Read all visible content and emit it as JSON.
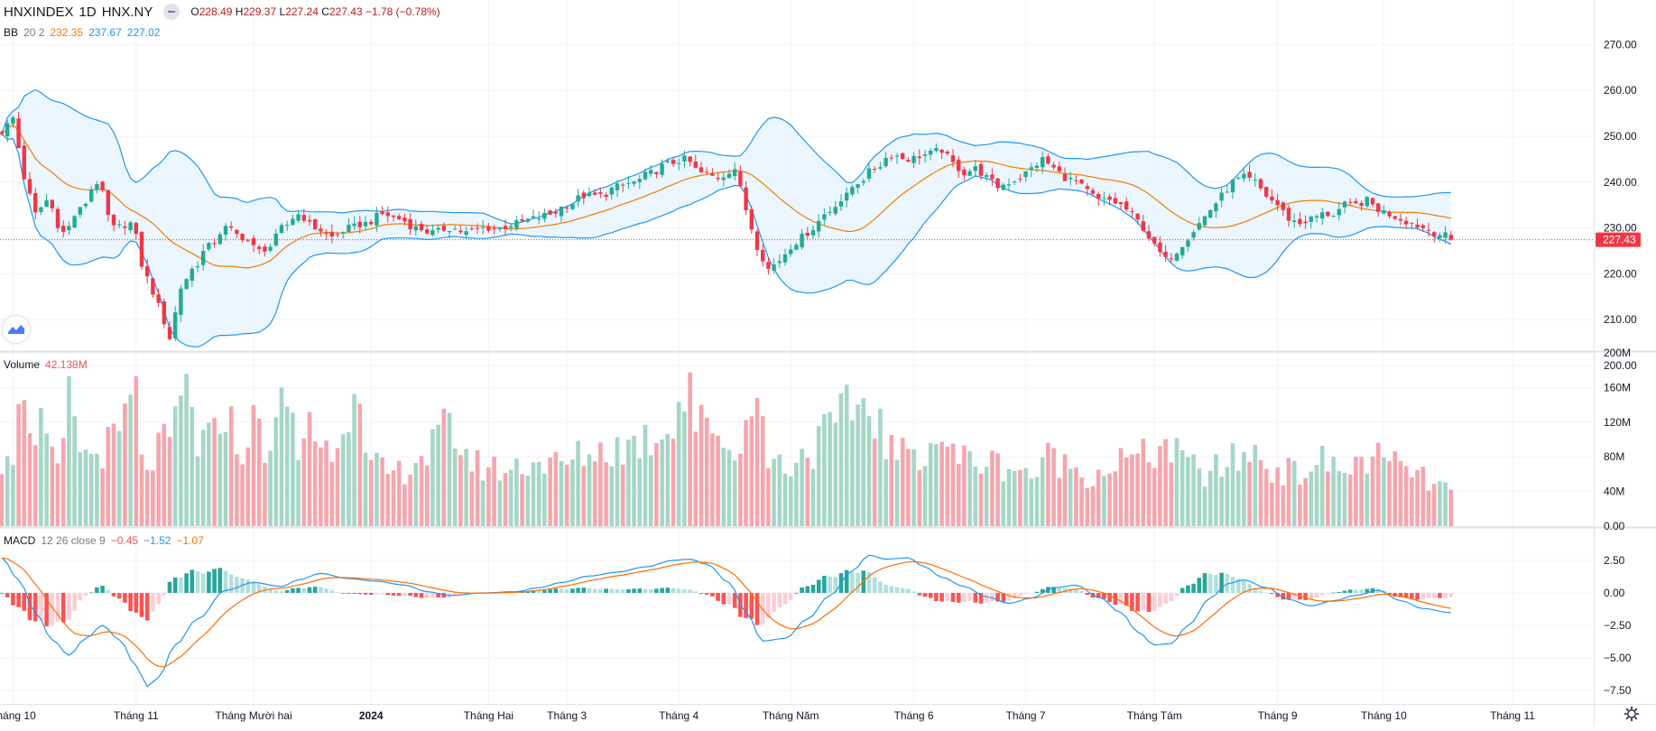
{
  "header": {
    "symbol": "HNXINDEX",
    "interval": "1D",
    "exchange": "HNX.NY",
    "open_label": "O",
    "open": "228.49",
    "high_label": "H",
    "high": "229.37",
    "low_label": "L",
    "low": "227.24",
    "close_label": "C",
    "close": "227.43",
    "change": "−1.78 (−0.78%)"
  },
  "bb_legend": {
    "name": "BB",
    "params": "20 2",
    "basis": "232.35",
    "upper": "237.67",
    "lower": "227.02"
  },
  "volume_legend": {
    "name": "Volume",
    "value": "42.138M"
  },
  "macd_legend": {
    "name": "MACD",
    "params": "12 26 close 9",
    "hist": "−0.45",
    "macd": "−1.52",
    "signal": "−1.07"
  },
  "price_badge": "227.43",
  "colors": {
    "up": "#26a69a",
    "down": "#ef5350",
    "candle_up": "#22ab94",
    "candle_down": "#f23645",
    "vol_up": "#a5d6c6",
    "vol_down": "#f5a6ad",
    "bb_basis": "#f57c00",
    "bb_band": "#2196f3",
    "bb_fill": "#e3f2fd",
    "macd_line": "#2196f3",
    "signal_line": "#ff6d00",
    "last_price": "#f23645",
    "grid": "#f0f3fa",
    "axis_text": "#131722"
  },
  "axis": {
    "price_ticks": [
      "270.00",
      "260.00",
      "250.00",
      "240.00",
      "230.00",
      "220.00",
      "210.00",
      "200.00"
    ],
    "volume_ticks": [
      "200M",
      "160M",
      "120M",
      "80M",
      "40M",
      "0.00"
    ],
    "macd_ticks": [
      "2.50",
      "0.00",
      "−2.50",
      "−5.00",
      "−7.50"
    ],
    "time_labels": [
      "Tháng 10",
      "Tháng 11",
      "Tháng Mười hai",
      "2024",
      "Tháng Hai",
      "Tháng 3",
      "Tháng 4",
      "Tháng Năm",
      "Tháng 6",
      "Tháng 7",
      "Tháng Tám",
      "Tháng 9",
      "Tháng 10",
      "Tháng 11"
    ],
    "bold_label_index": 3
  },
  "chart_data": {
    "type": "candlestick",
    "title": "HNXINDEX 1D HNX.NY",
    "price_range": [
      198,
      272
    ],
    "volume_range": [
      0,
      200
    ],
    "volume_unit": "M",
    "macd_range": [
      -8.5,
      3.0
    ],
    "months": [
      {
        "label": "Tháng 10",
        "start_index": 2
      },
      {
        "label": "Tháng 11",
        "start_index": 24
      },
      {
        "label": "Tháng Mười hai",
        "start_index": 45
      },
      {
        "label": "2024",
        "start_index": 66
      },
      {
        "label": "Tháng Hai",
        "start_index": 87
      },
      {
        "label": "Tháng 3",
        "start_index": 101
      },
      {
        "label": "Tháng 4",
        "start_index": 121
      },
      {
        "label": "Tháng Năm",
        "start_index": 141
      },
      {
        "label": "Tháng 6",
        "start_index": 163
      },
      {
        "label": "Tháng 7",
        "start_index": 183
      },
      {
        "label": "Tháng Tám",
        "start_index": 206
      },
      {
        "label": "Tháng 9",
        "start_index": 228
      },
      {
        "label": "Tháng 10",
        "start_index": 247
      },
      {
        "label": "Tháng 11",
        "start_index": 270
      }
    ],
    "close_anchors": [
      [
        0,
        251
      ],
      [
        2,
        254
      ],
      [
        4,
        241
      ],
      [
        6,
        233
      ],
      [
        8,
        236
      ],
      [
        11,
        229
      ],
      [
        14,
        234
      ],
      [
        17,
        240
      ],
      [
        20,
        230
      ],
      [
        23,
        231
      ],
      [
        26,
        219
      ],
      [
        28,
        213
      ],
      [
        30,
        206
      ],
      [
        32,
        217
      ],
      [
        34,
        221
      ],
      [
        37,
        226
      ],
      [
        40,
        230
      ],
      [
        43,
        228
      ],
      [
        46,
        225
      ],
      [
        48,
        226
      ],
      [
        50,
        230
      ],
      [
        53,
        233
      ],
      [
        56,
        230
      ],
      [
        59,
        228
      ],
      [
        62,
        230
      ],
      [
        65,
        231
      ],
      [
        68,
        233
      ],
      [
        71,
        232
      ],
      [
        74,
        230
      ],
      [
        77,
        229
      ],
      [
        80,
        230
      ],
      [
        83,
        229
      ],
      [
        86,
        230
      ],
      [
        89,
        230
      ],
      [
        92,
        231
      ],
      [
        95,
        232
      ],
      [
        98,
        233
      ],
      [
        101,
        235
      ],
      [
        104,
        237
      ],
      [
        107,
        237
      ],
      [
        110,
        239
      ],
      [
        113,
        240
      ],
      [
        116,
        242
      ],
      [
        119,
        244
      ],
      [
        122,
        245
      ],
      [
        125,
        242
      ],
      [
        128,
        241
      ],
      [
        131,
        243
      ],
      [
        133,
        234
      ],
      [
        135,
        226
      ],
      [
        137,
        221
      ],
      [
        139,
        223
      ],
      [
        141,
        226
      ],
      [
        143,
        228
      ],
      [
        145,
        230
      ],
      [
        147,
        233
      ],
      [
        150,
        236
      ],
      [
        153,
        240
      ],
      [
        156,
        243
      ],
      [
        159,
        246
      ],
      [
        162,
        245
      ],
      [
        165,
        246
      ],
      [
        168,
        247
      ],
      [
        170,
        244
      ],
      [
        172,
        242
      ],
      [
        174,
        243
      ],
      [
        176,
        241
      ],
      [
        178,
        239
      ],
      [
        180,
        240
      ],
      [
        182,
        241
      ],
      [
        184,
        243
      ],
      [
        186,
        245
      ],
      [
        188,
        243
      ],
      [
        190,
        241
      ],
      [
        192,
        240
      ],
      [
        194,
        238
      ],
      [
        196,
        236
      ],
      [
        198,
        236
      ],
      [
        200,
        235
      ],
      [
        202,
        233
      ],
      [
        204,
        230
      ],
      [
        206,
        226
      ],
      [
        208,
        223
      ],
      [
        210,
        225
      ],
      [
        212,
        228
      ],
      [
        214,
        231
      ],
      [
        216,
        234
      ],
      [
        218,
        237
      ],
      [
        220,
        240
      ],
      [
        222,
        241
      ],
      [
        224,
        240
      ],
      [
        226,
        237
      ],
      [
        228,
        235
      ],
      [
        230,
        232
      ],
      [
        232,
        231
      ],
      [
        234,
        232
      ],
      [
        236,
        233
      ],
      [
        238,
        233
      ],
      [
        240,
        235
      ],
      [
        242,
        235
      ],
      [
        244,
        236
      ],
      [
        246,
        234
      ],
      [
        248,
        233
      ],
      [
        250,
        232
      ],
      [
        252,
        231
      ],
      [
        254,
        230
      ],
      [
        256,
        229
      ],
      [
        258,
        228.3
      ],
      [
        259,
        227.43
      ]
    ],
    "volume_anchors": [
      [
        0,
        80
      ],
      [
        1,
        100
      ],
      [
        2,
        90
      ],
      [
        3,
        120
      ],
      [
        4,
        175
      ],
      [
        6,
        85
      ],
      [
        7,
        110
      ],
      [
        10,
        60
      ],
      [
        12,
        140
      ],
      [
        15,
        80
      ],
      [
        20,
        95
      ],
      [
        24,
        150
      ],
      [
        25,
        70
      ],
      [
        30,
        95
      ],
      [
        33,
        160
      ],
      [
        35,
        95
      ],
      [
        38,
        100
      ],
      [
        40,
        145
      ],
      [
        42,
        85
      ],
      [
        45,
        115
      ],
      [
        48,
        90
      ],
      [
        51,
        150
      ],
      [
        53,
        80
      ],
      [
        55,
        135
      ],
      [
        57,
        85
      ],
      [
        60,
        105
      ],
      [
        62,
        150
      ],
      [
        63,
        185
      ],
      [
        65,
        70
      ],
      [
        70,
        60
      ],
      [
        75,
        80
      ],
      [
        80,
        110
      ],
      [
        85,
        70
      ],
      [
        90,
        65
      ],
      [
        95,
        75
      ],
      [
        100,
        70
      ],
      [
        105,
        85
      ],
      [
        110,
        90
      ],
      [
        115,
        100
      ],
      [
        118,
        110
      ],
      [
        120,
        130
      ],
      [
        122,
        150
      ],
      [
        123,
        180
      ],
      [
        124,
        120
      ],
      [
        126,
        110
      ],
      [
        128,
        120
      ],
      [
        130,
        85
      ],
      [
        132,
        80
      ],
      [
        133,
        165
      ],
      [
        135,
        140
      ],
      [
        137,
        80
      ],
      [
        140,
        70
      ],
      [
        145,
        90
      ],
      [
        148,
        110
      ],
      [
        150,
        120
      ],
      [
        152,
        140
      ],
      [
        154,
        140
      ],
      [
        156,
        135
      ],
      [
        158,
        95
      ],
      [
        160,
        80
      ],
      [
        165,
        90
      ],
      [
        168,
        105
      ],
      [
        170,
        80
      ],
      [
        175,
        75
      ],
      [
        180,
        70
      ],
      [
        185,
        60
      ],
      [
        188,
        85
      ],
      [
        190,
        70
      ],
      [
        195,
        60
      ],
      [
        200,
        75
      ],
      [
        205,
        80
      ],
      [
        208,
        95
      ],
      [
        210,
        80
      ],
      [
        215,
        60
      ],
      [
        220,
        75
      ],
      [
        223,
        85
      ],
      [
        228,
        65
      ],
      [
        232,
        60
      ],
      [
        235,
        75
      ],
      [
        240,
        65
      ],
      [
        245,
        80
      ],
      [
        248,
        70
      ],
      [
        252,
        65
      ],
      [
        255,
        50
      ],
      [
        259,
        42
      ]
    ],
    "macd_anchors": [
      [
        0,
        2.7
      ],
      [
        3,
        1.0
      ],
      [
        6,
        -1.5
      ],
      [
        9,
        -3.6
      ],
      [
        12,
        -4.8
      ],
      [
        15,
        -3.5
      ],
      [
        18,
        -2.5
      ],
      [
        21,
        -3.6
      ],
      [
        24,
        -5.6
      ],
      [
        26,
        -7.2
      ],
      [
        28,
        -6.5
      ],
      [
        31,
        -4.0
      ],
      [
        35,
        -2.0
      ],
      [
        40,
        0.2
      ],
      [
        45,
        0.8
      ],
      [
        50,
        0.5
      ],
      [
        53,
        1.0
      ],
      [
        57,
        1.5
      ],
      [
        62,
        1.1
      ],
      [
        67,
        0.9
      ],
      [
        72,
        0.6
      ],
      [
        76,
        0.1
      ],
      [
        80,
        -0.2
      ],
      [
        86,
        0.0
      ],
      [
        92,
        0.1
      ],
      [
        96,
        0.4
      ],
      [
        100,
        0.8
      ],
      [
        105,
        1.3
      ],
      [
        110,
        1.6
      ],
      [
        115,
        2.0
      ],
      [
        120,
        2.5
      ],
      [
        123,
        2.6
      ],
      [
        126,
        2.2
      ],
      [
        130,
        0.8
      ],
      [
        133,
        -1.5
      ],
      [
        136,
        -3.7
      ],
      [
        140,
        -3.5
      ],
      [
        144,
        -2.0
      ],
      [
        148,
        -0.2
      ],
      [
        152,
        1.7
      ],
      [
        155,
        2.9
      ],
      [
        158,
        2.6
      ],
      [
        162,
        2.7
      ],
      [
        165,
        2.0
      ],
      [
        168,
        1.2
      ],
      [
        172,
        0.5
      ],
      [
        176,
        -0.3
      ],
      [
        180,
        -0.8
      ],
      [
        184,
        -0.4
      ],
      [
        188,
        0.4
      ],
      [
        192,
        0.6
      ],
      [
        196,
        -0.3
      ],
      [
        200,
        -1.5
      ],
      [
        203,
        -3.0
      ],
      [
        206,
        -4.0
      ],
      [
        209,
        -3.9
      ],
      [
        212,
        -2.5
      ],
      [
        216,
        -0.4
      ],
      [
        219,
        0.7
      ],
      [
        222,
        1.0
      ],
      [
        226,
        0.4
      ],
      [
        230,
        -0.5
      ],
      [
        234,
        -1.0
      ],
      [
        238,
        -0.6
      ],
      [
        242,
        -0.2
      ],
      [
        246,
        0.2
      ],
      [
        250,
        -0.6
      ],
      [
        254,
        -1.2
      ],
      [
        259,
        -1.52
      ]
    ]
  }
}
